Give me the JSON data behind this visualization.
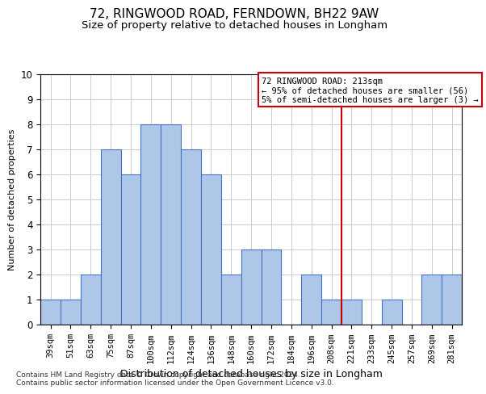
{
  "title": "72, RINGWOOD ROAD, FERNDOWN, BH22 9AW",
  "subtitle": "Size of property relative to detached houses in Longham",
  "xlabel": "Distribution of detached houses by size in Longham",
  "ylabel": "Number of detached properties",
  "categories": [
    "39sqm",
    "51sqm",
    "63sqm",
    "75sqm",
    "87sqm",
    "100sqm",
    "112sqm",
    "124sqm",
    "136sqm",
    "148sqm",
    "160sqm",
    "172sqm",
    "184sqm",
    "196sqm",
    "208sqm",
    "221sqm",
    "233sqm",
    "245sqm",
    "257sqm",
    "269sqm",
    "281sqm"
  ],
  "values": [
    1,
    1,
    2,
    7,
    6,
    8,
    8,
    7,
    6,
    2,
    3,
    3,
    0,
    2,
    1,
    1,
    0,
    1,
    0,
    2,
    2
  ],
  "bar_color": "#aec6e8",
  "bar_edge_color": "#4472c4",
  "vline_x_index": 14.5,
  "vline_color": "#cc0000",
  "annotation_box_text": "72 RINGWOOD ROAD: 213sqm\n← 95% of detached houses are smaller (56)\n5% of semi-detached houses are larger (3) →",
  "ylim": [
    0,
    10
  ],
  "yticks": [
    0,
    1,
    2,
    3,
    4,
    5,
    6,
    7,
    8,
    9,
    10
  ],
  "footer_line1": "Contains HM Land Registry data © Crown copyright and database right 2024.",
  "footer_line2": "Contains public sector information licensed under the Open Government Licence v3.0.",
  "background_color": "#ffffff",
  "grid_color": "#cccccc",
  "title_fontsize": 11,
  "subtitle_fontsize": 9.5,
  "xlabel_fontsize": 9,
  "ylabel_fontsize": 8,
  "tick_fontsize": 7.5,
  "footer_fontsize": 6.5,
  "annotation_fontsize": 7.5
}
